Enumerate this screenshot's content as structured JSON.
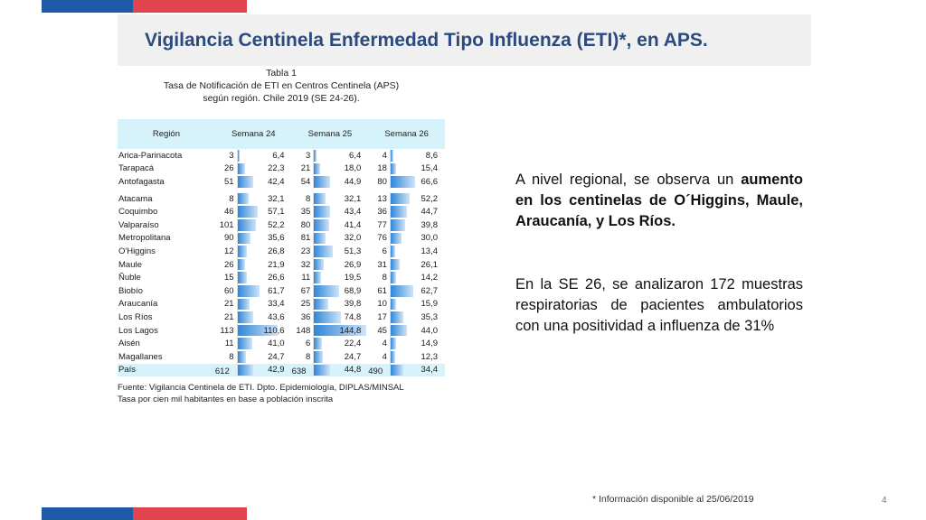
{
  "title": "Vigilancia Centinela Enfermedad Tipo Influenza (ETI)*, en APS.",
  "caption": {
    "line1": "Tabla 1",
    "line2": "Tasa de Notificación de ETI en Centros Centinela (APS)",
    "line3": "según región. Chile 2019 (SE 24-26)."
  },
  "table": {
    "headers": [
      "Región",
      "Semana 24",
      "Semana 25",
      "Semana 26"
    ],
    "rows": [
      {
        "region": "Arica-Parinacota",
        "n24": "3",
        "r24": "6,4",
        "n25": "3",
        "r25": "6,4",
        "n26": "4",
        "r26": "8,6"
      },
      {
        "region": "Tarapacá",
        "n24": "26",
        "r24": "22,3",
        "n25": "21",
        "r25": "18,0",
        "n26": "18",
        "r26": "15,4"
      },
      {
        "region": "Antofagasta",
        "n24": "51",
        "r24": "42,4",
        "n25": "54",
        "r25": "44,9",
        "n26": "80",
        "r26": "66,6"
      },
      {
        "region": "Atacama",
        "n24": "8",
        "r24": "32,1",
        "n25": "8",
        "r25": "32,1",
        "n26": "13",
        "r26": "52,2"
      },
      {
        "region": "Coquimbo",
        "n24": "46",
        "r24": "57,1",
        "n25": "35",
        "r25": "43,4",
        "n26": "36",
        "r26": "44,7"
      },
      {
        "region": "Valparaíso",
        "n24": "101",
        "r24": "52,2",
        "n25": "80",
        "r25": "41,4",
        "n26": "77",
        "r26": "39,8"
      },
      {
        "region": "Metropolitana",
        "n24": "90",
        "r24": "35,6",
        "n25": "81",
        "r25": "32,0",
        "n26": "76",
        "r26": "30,0"
      },
      {
        "region": "O'Higgins",
        "n24": "12",
        "r24": "26,8",
        "n25": "23",
        "r25": "51,3",
        "n26": "6",
        "r26": "13,4"
      },
      {
        "region": "Maule",
        "n24": "26",
        "r24": "21,9",
        "n25": "32",
        "r25": "26,9",
        "n26": "31",
        "r26": "26,1"
      },
      {
        "region": "Ñuble",
        "n24": "15",
        "r24": "26,6",
        "n25": "11",
        "r25": "19,5",
        "n26": "8",
        "r26": "14,2"
      },
      {
        "region": "Biobío",
        "n24": "60",
        "r24": "61,7",
        "n25": "67",
        "r25": "68,9",
        "n26": "61",
        "r26": "62,7"
      },
      {
        "region": "Araucanía",
        "n24": "21",
        "r24": "33,4",
        "n25": "25",
        "r25": "39,8",
        "n26": "10",
        "r26": "15,9"
      },
      {
        "region": "Los Ríos",
        "n24": "21",
        "r24": "43,6",
        "n25": "36",
        "r25": "74,8",
        "n26": "17",
        "r26": "35,3"
      },
      {
        "region": "Los Lagos",
        "n24": "113",
        "r24": "110,6",
        "n25": "148",
        "r25": "144,8",
        "n26": "45",
        "r26": "44,0"
      },
      {
        "region": "Aisén",
        "n24": "11",
        "r24": "41,0",
        "n25": "6",
        "r25": "22,4",
        "n26": "4",
        "r26": "14,9"
      },
      {
        "region": "Magallanes",
        "n24": "8",
        "r24": "24,7",
        "n25": "8",
        "r25": "24,7",
        "n26": "4",
        "r26": "12,3"
      }
    ],
    "total": {
      "region": "País",
      "n24": "612",
      "r24": "42,9",
      "n25": "638",
      "r25": "44,8",
      "n26": "490",
      "r26": "34,4"
    }
  },
  "source": {
    "line1": "Fuente: Vigilancia Centinela de ETI. Dpto. Epidemiología, DIPLAS/MINSAL",
    "line2": "Tasa por cien mil habitantes en base a población inscrita"
  },
  "paragraph1": {
    "intro": "A nivel regional, se observa un ",
    "bold": "aumento en los centinelas de O´Higgins, Maule, Araucanía, y Los Ríos."
  },
  "paragraph2": "En la SE 26, se analizaron 172 muestras respiratorias de pacientes ambulatorios con una positividad a influenza de 31%",
  "footnote": "* Información disponible al 25/06/2019",
  "page_number": "4",
  "colors": {
    "title": "#2b4a7e",
    "accent_blue": "#1e5aa8",
    "accent_red": "#e0444c",
    "header_bg": "#d6f2fb"
  }
}
